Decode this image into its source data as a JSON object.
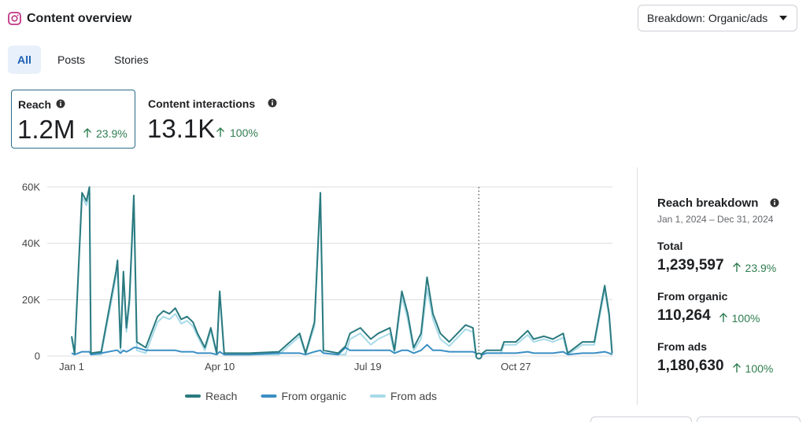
{
  "header": {
    "title": "Content overview",
    "breakdown_button": "Breakdown: Organic/ads"
  },
  "tabs": [
    "All",
    "Posts",
    "Stories"
  ],
  "metrics": [
    {
      "label": "Reach",
      "value": "1.2M",
      "change": "23.9%"
    },
    {
      "label": "Content interactions",
      "value": "13.1K",
      "change": "100%"
    }
  ],
  "chart_data": {
    "type": "line",
    "x": [
      0,
      2,
      7,
      10,
      12,
      13,
      20,
      30,
      31,
      33,
      35,
      37,
      39,
      42,
      44,
      50,
      58,
      62,
      66,
      70,
      74,
      78,
      82,
      85,
      90,
      94,
      98,
      100,
      103,
      120,
      140,
      154,
      158,
      164,
      168,
      170,
      180,
      185,
      188,
      195,
      202,
      207,
      215,
      218,
      223,
      227,
      231,
      236,
      240,
      244,
      249,
      255,
      266,
      271,
      273,
      275,
      280,
      290,
      292,
      300,
      308,
      312,
      319,
      325,
      332,
      335,
      345,
      353,
      360,
      363,
      365
    ],
    "series": [
      {
        "name": "Reach",
        "color": "#2a7a7f",
        "values": [
          7000,
          1000,
          58000,
          55000,
          60000,
          1000,
          1500,
          30000,
          34000,
          3000,
          30000,
          10000,
          20000,
          57000,
          5000,
          3000,
          14000,
          16000,
          15000,
          17000,
          13000,
          14000,
          12000,
          8000,
          3000,
          10000,
          1000,
          23000,
          1000,
          1000,
          1500,
          8000,
          1000,
          12000,
          58000,
          2000,
          1000,
          3500,
          8000,
          10000,
          6000,
          8000,
          10000,
          2000,
          23000,
          15000,
          3000,
          8000,
          28000,
          15000,
          8000,
          5000,
          11000,
          10000,
          1000,
          0,
          2000,
          2000,
          5000,
          5000,
          9000,
          6000,
          7000,
          6000,
          8000,
          1000,
          5000,
          5000,
          25000,
          15000,
          1000
        ]
      },
      {
        "name": "From organic",
        "color": "#3b8fc4",
        "values": [
          1000,
          500,
          1500,
          1500,
          1500,
          500,
          1000,
          2000,
          2000,
          1000,
          2000,
          1500,
          2000,
          3000,
          3000,
          2000,
          2000,
          2000,
          2000,
          2000,
          1500,
          1500,
          1500,
          1000,
          1000,
          1000,
          500,
          1500,
          500,
          500,
          1000,
          1000,
          500,
          1500,
          2000,
          1000,
          500,
          3000,
          2000,
          2000,
          2000,
          2000,
          2000,
          1000,
          2000,
          2000,
          1000,
          2000,
          4000,
          2000,
          2000,
          1500,
          1500,
          1500,
          1000,
          0,
          1000,
          1000,
          1000,
          1000,
          1500,
          1000,
          1000,
          1000,
          1500,
          500,
          1000,
          1000,
          1500,
          1000,
          500
        ]
      },
      {
        "name": "From ads",
        "color": "#a8dbe8",
        "values": [
          6000,
          500,
          56500,
          53500,
          58500,
          500,
          500,
          28000,
          32000,
          2000,
          28000,
          8500,
          18000,
          54000,
          2000,
          1000,
          12000,
          14000,
          13000,
          15000,
          11500,
          12500,
          10500,
          7000,
          2000,
          9000,
          500,
          21500,
          500,
          500,
          500,
          7000,
          500,
          10500,
          56000,
          1000,
          500,
          500,
          6000,
          8000,
          4000,
          6000,
          8000,
          1000,
          21000,
          13000,
          2000,
          6000,
          24000,
          13000,
          6000,
          3500,
          9500,
          8500,
          0,
          0,
          1000,
          1000,
          4000,
          4000,
          7500,
          5000,
          6000,
          5000,
          6500,
          500,
          4000,
          4000,
          23500,
          14000,
          500
        ]
      }
    ],
    "xlim": [
      0,
      365
    ],
    "xticks": [
      {
        "value": 0,
        "label": "Jan 1"
      },
      {
        "value": 100,
        "label": "Apr 10"
      },
      {
        "value": 200,
        "label": "Jul 19"
      },
      {
        "value": 300,
        "label": "Oct 27"
      }
    ],
    "ylim": [
      0,
      60000
    ],
    "yticks": [
      {
        "value": 0,
        "label": "0"
      },
      {
        "value": 20000,
        "label": "20K"
      },
      {
        "value": 40000,
        "label": "40K"
      },
      {
        "value": 60000,
        "label": "60K"
      }
    ],
    "grid": true,
    "cursor_x": 275,
    "legend": "bottom"
  },
  "breakdown": {
    "title": "Reach breakdown",
    "date_range": "Jan 1, 2024 – Dec 31, 2024",
    "rows": [
      {
        "label": "Total",
        "value": "1,239,597",
        "change": "23.9%"
      },
      {
        "label": "From organic",
        "value": "110,264",
        "change": "100%"
      },
      {
        "label": "From ads",
        "value": "1,180,630",
        "change": "100%"
      }
    ]
  }
}
